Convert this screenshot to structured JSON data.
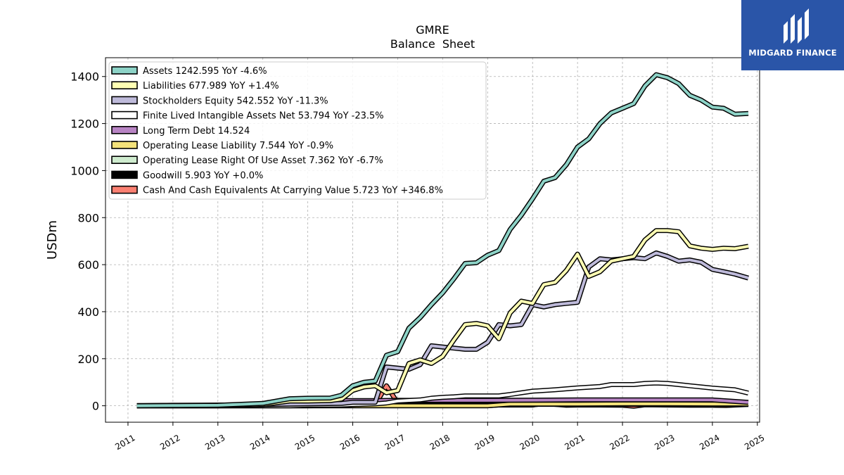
{
  "brand": {
    "name": "MIDGARD FINANCE",
    "bg_color": "#2a55a8"
  },
  "chart_data": {
    "type": "line",
    "title": "GMRE",
    "subtitle": "Balance  Sheet",
    "ylabel": "USDm",
    "xlabel": "",
    "xlim": [
      2010.5,
      2025.05
    ],
    "ylim": [
      -70,
      1480
    ],
    "yticks": [
      0,
      200,
      400,
      600,
      800,
      1000,
      1200,
      1400
    ],
    "xticks": [
      "2011",
      "2012",
      "2013",
      "2014",
      "2015",
      "2016",
      "2017",
      "2018",
      "2019",
      "2020",
      "2021",
      "2022",
      "2023",
      "2024",
      "2025"
    ],
    "grid": true,
    "legend_position": "top-left",
    "series": [
      {
        "name": "Assets",
        "legend": "Assets  1242.595 YoY -4.6%",
        "color": "#8dd3c7",
        "x": [
          2011.2,
          2012,
          2013,
          2014,
          2014.6,
          2015,
          2015.5,
          2015.75,
          2016,
          2016.25,
          2016.5,
          2016.75,
          2017,
          2017.25,
          2017.5,
          2017.75,
          2018,
          2018.25,
          2018.5,
          2018.75,
          2019,
          2019.25,
          2019.5,
          2019.75,
          2020,
          2020.25,
          2020.5,
          2020.75,
          2021,
          2021.25,
          2021.5,
          2021.75,
          2022,
          2022.25,
          2022.5,
          2022.75,
          2023,
          2023.25,
          2023.5,
          2023.75,
          2024,
          2024.25,
          2024.5,
          2024.8
        ],
        "y": [
          0,
          1,
          2,
          10,
          30,
          32,
          33,
          45,
          85,
          100,
          105,
          215,
          230,
          330,
          375,
          430,
          480,
          540,
          605,
          608,
          640,
          660,
          750,
          810,
          880,
          955,
          970,
          1025,
          1100,
          1135,
          1200,
          1245,
          1265,
          1285,
          1360,
          1408,
          1395,
          1370,
          1320,
          1300,
          1270,
          1265,
          1240,
          1243
        ]
      },
      {
        "name": "Liabilities",
        "legend": "Liabilities  677.989 YoY +1.4%",
        "color": "#ffffb3",
        "x": [
          2011.2,
          2012,
          2013,
          2014,
          2014.6,
          2015,
          2015.5,
          2015.75,
          2016,
          2016.25,
          2016.5,
          2016.75,
          2017,
          2017.25,
          2017.5,
          2017.75,
          2018,
          2018.25,
          2018.5,
          2018.75,
          2019,
          2019.25,
          2019.5,
          2019.75,
          2020,
          2020.25,
          2020.5,
          2020.75,
          2021,
          2021.25,
          2021.5,
          2021.75,
          2022,
          2022.25,
          2022.5,
          2022.75,
          2023,
          2023.25,
          2023.5,
          2023.75,
          2024,
          2024.25,
          2024.5,
          2024.8
        ],
        "y": [
          0,
          0,
          0,
          5,
          20,
          20,
          22,
          28,
          65,
          80,
          85,
          55,
          65,
          180,
          195,
          180,
          210,
          280,
          345,
          350,
          340,
          285,
          395,
          445,
          435,
          515,
          525,
          575,
          645,
          550,
          570,
          615,
          625,
          635,
          705,
          745,
          745,
          740,
          680,
          670,
          665,
          670,
          668,
          678
        ]
      },
      {
        "name": "Stockholders Equity",
        "legend": "Stockholders Equity  542.552 YoY -11.3%",
        "color": "#bebada",
        "x": [
          2011.2,
          2012,
          2013,
          2014,
          2015,
          2015.75,
          2016,
          2016.25,
          2016.5,
          2016.75,
          2017,
          2017.25,
          2017.5,
          2017.75,
          2018,
          2018.25,
          2018.5,
          2018.75,
          2019,
          2019.25,
          2019.5,
          2019.75,
          2020,
          2020.25,
          2020.5,
          2020.75,
          2021,
          2021.25,
          2021.5,
          2021.75,
          2022,
          2022.25,
          2022.5,
          2022.75,
          2023,
          2023.25,
          2023.5,
          2023.75,
          2024,
          2024.25,
          2024.5,
          2024.8
        ],
        "y": [
          0,
          2,
          3,
          5,
          8,
          10,
          15,
          15,
          15,
          165,
          160,
          155,
          175,
          255,
          250,
          245,
          240,
          240,
          270,
          345,
          340,
          345,
          430,
          420,
          430,
          435,
          440,
          590,
          625,
          620,
          625,
          630,
          625,
          650,
          635,
          615,
          620,
          610,
          580,
          570,
          560,
          543
        ]
      },
      {
        "name": "Finite Lived Intangible Assets Net",
        "legend": "Finite Lived Intangible Assets Net  53.794 YoY -23.5%",
        "color": "#ffffff",
        "x": [
          2011.2,
          2013,
          2014.6,
          2015,
          2015.75,
          2016,
          2016.5,
          2016.75,
          2017,
          2017.5,
          2017.75,
          2018,
          2018.25,
          2018.5,
          2019,
          2019.25,
          2019.5,
          2019.75,
          2020,
          2020.5,
          2021,
          2021.5,
          2021.75,
          2022,
          2022.25,
          2022.5,
          2022.75,
          2023,
          2023.25,
          2023.5,
          2024,
          2024.5,
          2024.8
        ],
        "y": [
          0,
          0,
          0,
          2,
          3,
          5,
          8,
          12,
          20,
          25,
          32,
          36,
          38,
          42,
          42,
          42,
          48,
          55,
          62,
          68,
          76,
          82,
          90,
          90,
          90,
          95,
          97,
          95,
          90,
          85,
          75,
          68,
          54
        ]
      },
      {
        "name": "Long Term Debt",
        "legend": "Long Term Debt  14.524",
        "color": "#b884c4",
        "x": [
          2011.2,
          2014,
          2014.6,
          2015,
          2015.75,
          2016,
          2016.5,
          2017,
          2018,
          2019,
          2020,
          2021,
          2022,
          2023,
          2024,
          2024.8
        ],
        "y": [
          1,
          3,
          20,
          22,
          22,
          22,
          22,
          23,
          23,
          23,
          24,
          25,
          25,
          25,
          25,
          14.5
        ]
      },
      {
        "name": "Operating Lease Liability",
        "legend": "Operating Lease Liability  7.544 YoY -0.9%",
        "color": "#f4e27a",
        "x": [
          2011.2,
          2019,
          2019.5,
          2020,
          2021,
          2022,
          2023,
          2024,
          2024.8
        ],
        "y": [
          0,
          0,
          7,
          7,
          7,
          8,
          8,
          7.6,
          7.5
        ]
      },
      {
        "name": "Operating Lease Right Of Use Asset",
        "legend": "Operating Lease Right Of Use Asset  7.362 YoY -6.7%",
        "color": "#cfeccf",
        "x": [
          2011.2,
          2019,
          2019.5,
          2020,
          2021,
          2022,
          2023,
          2024,
          2024.8
        ],
        "y": [
          0,
          0,
          7,
          7,
          7,
          8,
          8,
          7.9,
          7.4
        ]
      },
      {
        "name": "Goodwill",
        "legend": "Goodwill  5.903 YoY +0.0%",
        "color": "#000000",
        "x": [
          2011.2,
          2015,
          2016,
          2017,
          2018,
          2019,
          2020,
          2021,
          2022,
          2023,
          2024,
          2024.8
        ],
        "y": [
          0,
          0,
          3,
          5,
          5.9,
          5.9,
          5.9,
          5.9,
          5.9,
          5.9,
          5.9,
          5.9
        ]
      },
      {
        "name": "Cash And Cash Equivalents At Carrying Value",
        "legend": "Cash And Cash Equivalents At Carrying Value  5.723 YoY +346.8%",
        "color": "#fb8072",
        "x": [
          2011.2,
          2012,
          2013,
          2014,
          2015,
          2015.75,
          2016,
          2016.25,
          2016.5,
          2016.75,
          2017,
          2017.25,
          2017.5,
          2017.75,
          2018,
          2018.5,
          2019,
          2019.5,
          2020,
          2020.25,
          2020.5,
          2020.75,
          2021,
          2021.5,
          2022,
          2022.25,
          2022.5,
          2023,
          2023.5,
          2024,
          2024.3,
          2024.8
        ],
        "y": [
          0,
          0,
          0,
          1,
          3,
          3,
          8,
          3,
          5,
          85,
          12,
          2,
          8,
          5,
          3,
          2,
          3,
          3,
          3,
          10,
          6,
          2,
          3,
          3,
          2,
          -2,
          4,
          3,
          2,
          2,
          1,
          5.7
        ]
      }
    ]
  }
}
